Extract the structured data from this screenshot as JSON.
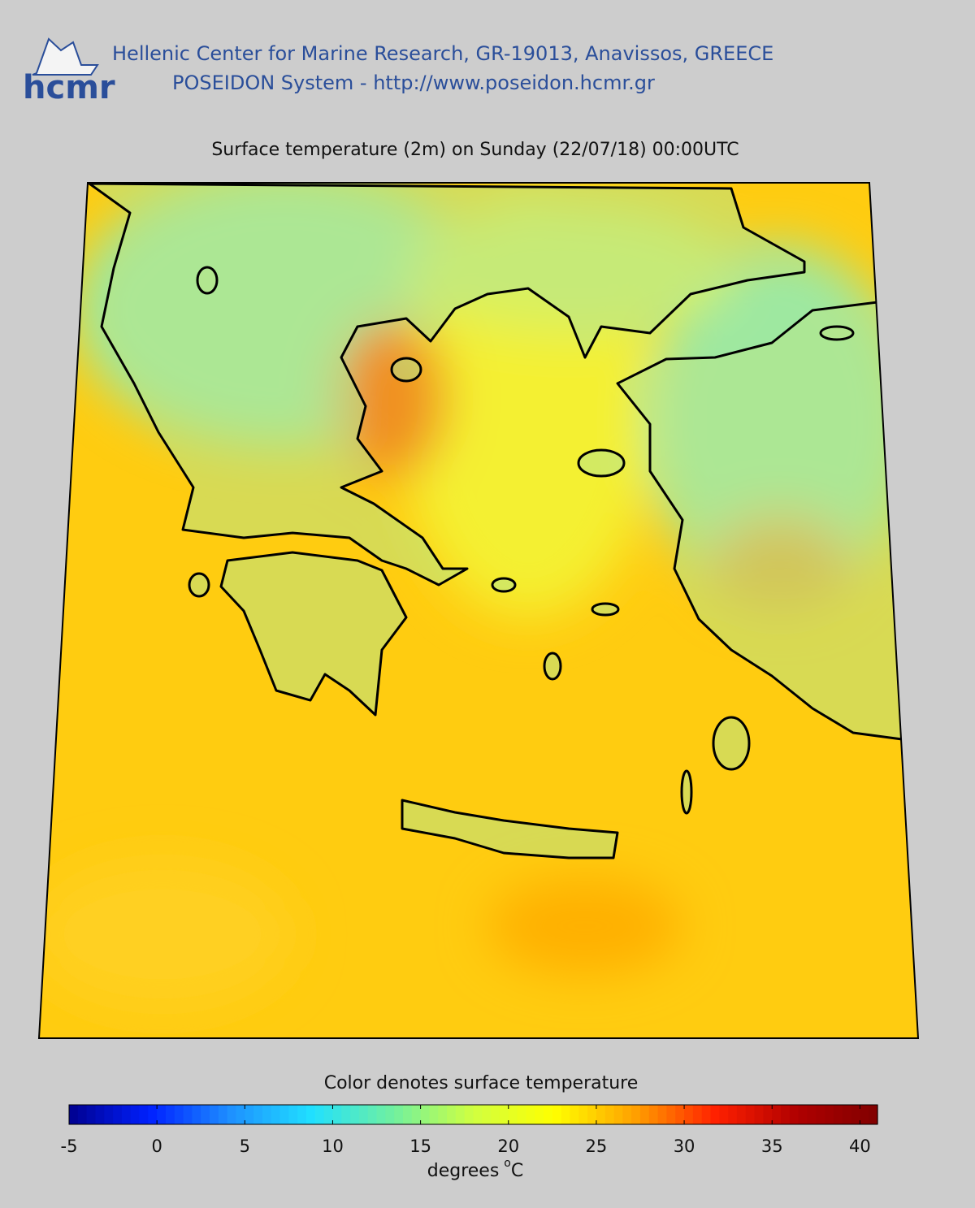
{
  "header": {
    "logo_text": "hcmr",
    "line1": "Hellenic Center for Marine Research, GR-19013, Anavissos, GREECE",
    "line2": "POSEIDON System - http://www.poseidon.hcmr.gr"
  },
  "map": {
    "title": "Surface temperature (2m) on Sunday (22/07/18) 00:00UTC"
  },
  "colorbar": {
    "label": "Color denotes surface temperature",
    "range": [
      -5,
      41
    ],
    "ticks": [
      -5,
      0,
      5,
      10,
      15,
      20,
      25,
      30,
      35,
      40
    ],
    "colors": [
      "#00008f",
      "#0020ff",
      "#1e90ff",
      "#20e0ff",
      "#70f0a0",
      "#d0ff40",
      "#ffff00",
      "#ffa000",
      "#ff2000",
      "#b00000",
      "#800000"
    ],
    "unit": {
      "text": "degrees",
      "superscript": "o",
      "suffix": "C"
    }
  }
}
